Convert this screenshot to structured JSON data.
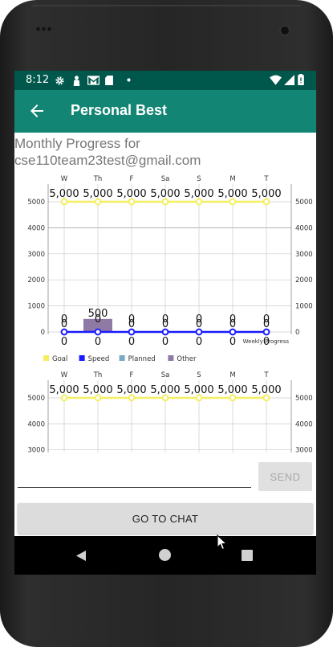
{
  "status_bar": {
    "time": "8:12",
    "left_icons": [
      "gear-icon",
      "person-icon",
      "gmail-icon",
      "sdcard-icon",
      "dot-icon"
    ],
    "right_icons": [
      "wifi-icon",
      "signal-icon",
      "battery-icon"
    ],
    "background": "#00574b"
  },
  "app_bar": {
    "title": "Personal Best",
    "background": "#138574"
  },
  "monthly_title": "Monthly Progress for cse110team23test@gmail.com",
  "chart_data": [
    {
      "type": "combined bar-line",
      "categories": [
        "W",
        "Th",
        "F",
        "Sa",
        "S",
        "M",
        "T"
      ],
      "series": [
        {
          "name": "Goal",
          "kind": "line",
          "color": "#f5ef60",
          "values": [
            5000,
            5000,
            5000,
            5000,
            5000,
            5000,
            5000
          ],
          "labels": [
            "5,000",
            "5,000",
            "5,000",
            "5,000",
            "5,000",
            "5,000",
            "5,000"
          ]
        },
        {
          "name": "Speed",
          "kind": "line",
          "color": "#1a1aff",
          "values": [
            0,
            0,
            0,
            0,
            0,
            0,
            0
          ],
          "labels": [
            "0",
            "0",
            "0",
            "0",
            "0",
            "0",
            "0"
          ]
        },
        {
          "name": "Planned",
          "kind": "bar",
          "color": "#7aa9c4",
          "values": [
            0,
            0,
            0,
            0,
            0,
            0,
            0
          ],
          "labels": [
            "0",
            "0",
            "0",
            "0",
            "0",
            "0",
            "0"
          ]
        },
        {
          "name": "Other",
          "kind": "bar",
          "color": "#8f7aa6",
          "values": [
            0,
            500,
            0,
            0,
            0,
            0,
            0
          ],
          "labels": [
            "0",
            "500",
            "0",
            "0",
            "0",
            "0",
            "0"
          ]
        }
      ],
      "y_ticks": [
        "0",
        "1000",
        "2000",
        "3000",
        "4000",
        "5000"
      ],
      "ylim": [
        0,
        5000
      ],
      "description_label": "Weekly Progress",
      "legend_position": "bottom-left",
      "grid": true
    },
    {
      "type": "combined bar-line",
      "categories": [
        "W",
        "Th",
        "F",
        "Sa",
        "S",
        "M",
        "T"
      ],
      "series": [
        {
          "name": "Goal",
          "kind": "line",
          "color": "#f5ef60",
          "values": [
            5000,
            5000,
            5000,
            5000,
            5000,
            5000,
            5000
          ],
          "labels": [
            "5,000",
            "5,000",
            "5,000",
            "5,000",
            "5,000",
            "5,000",
            "5,000"
          ]
        }
      ],
      "y_ticks": [
        "3000",
        "4000",
        "5000"
      ],
      "ylim": [
        2800,
        5000
      ],
      "grid": true
    }
  ],
  "message_input": {
    "value": "",
    "placeholder": ""
  },
  "send_button": {
    "label": "SEND"
  },
  "chat_button": {
    "label": "GO TO CHAT"
  },
  "nav_bar": {
    "icons": [
      "back-triangle-icon",
      "home-circle-icon",
      "recents-square-icon"
    ]
  }
}
